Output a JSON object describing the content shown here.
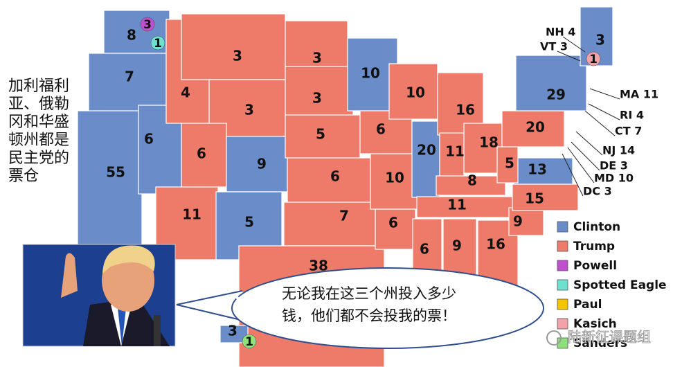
{
  "map": {
    "states": [
      {
        "label": 8,
        "color": "#6a8dc9"
      },
      {
        "label": 7,
        "color": "#6a8dc9"
      },
      {
        "label": 55,
        "color": "#6a8dc9"
      },
      {
        "label": 6,
        "color": "#6a8dc9"
      },
      {
        "label": 4,
        "color": "#ee7b6a"
      },
      {
        "label": 3,
        "color": "#ee7b6a"
      },
      {
        "label": 3,
        "color": "#ee7b6a"
      },
      {
        "label": 6,
        "color": "#ee7b6a"
      },
      {
        "label": 9,
        "color": "#6a8dc9"
      },
      {
        "label": 11,
        "color": "#ee7b6a"
      },
      {
        "label": 5,
        "color": "#6a8dc9"
      },
      {
        "label": 3,
        "color": "#ee7b6a"
      },
      {
        "label": 3,
        "color": "#ee7b6a"
      },
      {
        "label": 5,
        "color": "#ee7b6a"
      },
      {
        "label": 6,
        "color": "#ee7b6a"
      },
      {
        "label": 7,
        "color": "#ee7b6a"
      },
      {
        "label": 38,
        "color": "#ee7b6a"
      },
      {
        "label": 10,
        "color": "#6a8dc9"
      },
      {
        "label": 6,
        "color": "#ee7b6a"
      },
      {
        "label": 10,
        "color": "#ee7b6a"
      },
      {
        "label": 6,
        "color": "#ee7b6a"
      },
      {
        "label": 10,
        "color": "#ee7b6a"
      },
      {
        "label": 20,
        "color": "#6a8dc9"
      },
      {
        "label": 16,
        "color": "#ee7b6a"
      },
      {
        "label": 11,
        "color": "#ee7b6a"
      },
      {
        "label": 18,
        "color": "#ee7b6a"
      },
      {
        "label": 8,
        "color": "#ee7b6a"
      },
      {
        "label": 11,
        "color": "#ee7b6a"
      },
      {
        "label": 6,
        "color": "#ee7b6a"
      },
      {
        "label": 9,
        "color": "#ee7b6a"
      },
      {
        "label": 16,
        "color": "#ee7b6a"
      },
      {
        "label": 9,
        "color": "#ee7b6a"
      },
      {
        "label": 15,
        "color": "#ee7b6a"
      },
      {
        "label": 13,
        "color": "#6a8dc9"
      },
      {
        "label": 5,
        "color": "#ee7b6a"
      },
      {
        "label": 20,
        "color": "#ee7b6a"
      },
      {
        "label": 29,
        "color": "#6a8dc9"
      },
      {
        "label": 3,
        "color": "#6a8dc9"
      },
      {
        "label": 3,
        "color": "#6a8dc9"
      }
    ],
    "faithless": [
      {
        "label": 3,
        "color": "#c04fd0"
      },
      {
        "label": 1,
        "color": "#6de0d0"
      },
      {
        "label": 1,
        "color": "#f2a2a8"
      },
      {
        "label": 1,
        "color": "#8de07a"
      }
    ],
    "callouts": [
      "NH 4",
      "VT 3",
      "MA 11",
      "RI 4",
      "CT 7",
      "NJ 14",
      "DE 3",
      "MD 10",
      "DC 3"
    ],
    "legend": [
      {
        "name": "Clinton",
        "color": "#6a8dc9"
      },
      {
        "name": "Trump",
        "color": "#ee7b6a"
      },
      {
        "name": "Powell",
        "color": "#c04fd0"
      },
      {
        "name": "Spotted Eagle",
        "color": "#6de0d0"
      },
      {
        "name": "Paul",
        "color": "#f5c400"
      },
      {
        "name": "Kasich",
        "color": "#f2a2a8"
      },
      {
        "name": "Sanders",
        "color": "#8de07a"
      }
    ]
  },
  "caption": {
    "lines": [
      "加利福利",
      "亚、俄勒",
      "冈和华盛",
      "顿州都是",
      "民主党的",
      "票仓"
    ]
  },
  "speech_bubble": {
    "lines": [
      "无论我在这三个州投入多少",
      "钱，他们都不会投我的票！"
    ]
  },
  "watermark": "陆新征课题组"
}
